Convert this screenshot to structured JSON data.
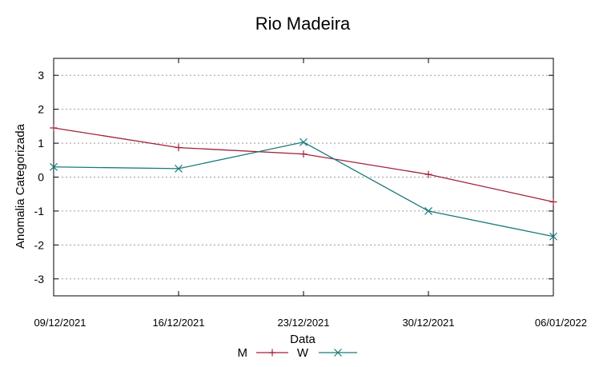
{
  "chart_data": {
    "type": "line",
    "title": "Rio Madeira",
    "xlabel": "Data",
    "ylabel": "Anomalia Categorizada",
    "categories": [
      "09/12/2021",
      "16/12/2021",
      "23/12/2021",
      "30/12/2021",
      "06/01/2022"
    ],
    "ylim": [
      -3.5,
      3.5
    ],
    "yticks": [
      "3",
      "2",
      "1",
      "0",
      "-1",
      "-2",
      "-3"
    ],
    "ytick_values": [
      3,
      2,
      1,
      0,
      -1,
      -2,
      -3
    ],
    "grid": true,
    "legend_position": "bottom",
    "series": [
      {
        "name": "M",
        "color": "#a0203a",
        "marker": "plus",
        "values": [
          1.45,
          0.87,
          0.68,
          0.08,
          -0.73
        ]
      },
      {
        "name": "W",
        "color": "#1a7a7a",
        "marker": "cross",
        "values": [
          0.3,
          0.25,
          1.03,
          -1.0,
          -1.75
        ]
      }
    ]
  }
}
